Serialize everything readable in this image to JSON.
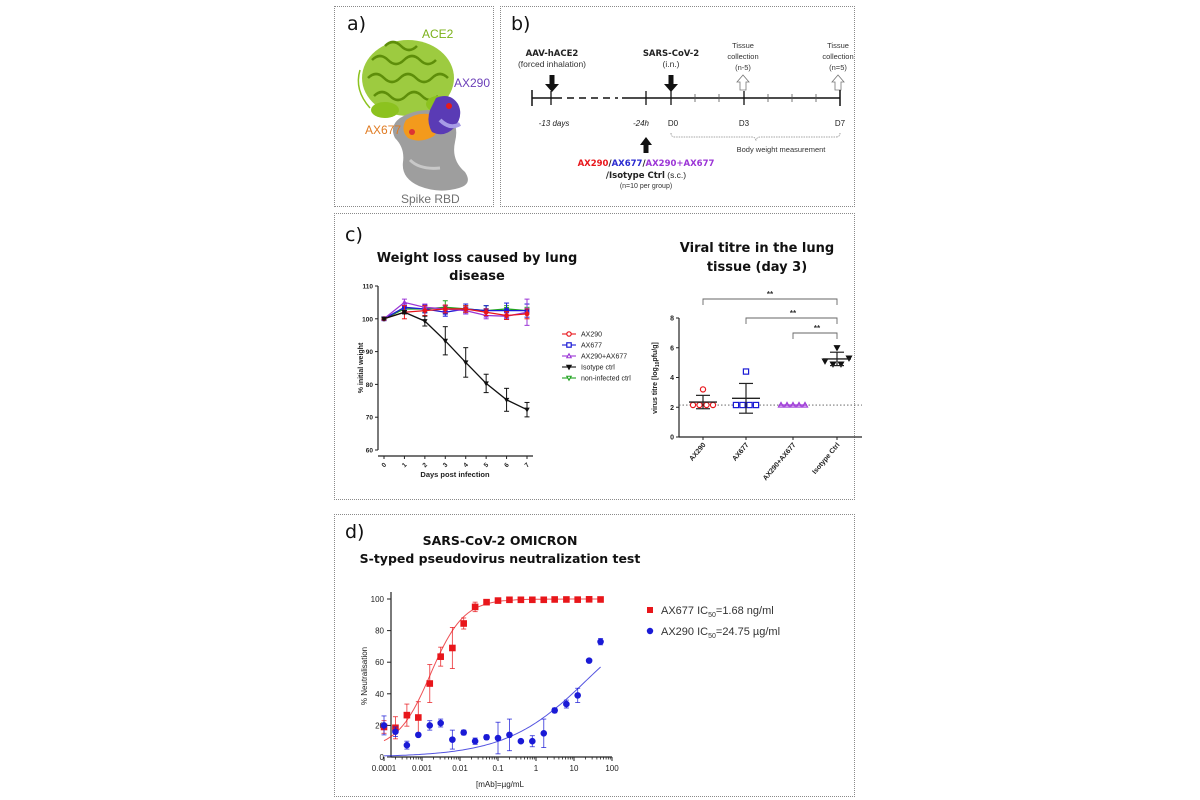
{
  "panels": {
    "a": {
      "label": "a)",
      "ace2": "ACE2",
      "ax290": "AX290",
      "ax677": "AX677",
      "rbd": "Spike RBD",
      "colors": {
        "ace2": "#8cc21f",
        "ax290": "#5a3bb5",
        "ax677": "#f39a1c",
        "rbd": "#9e9e9e"
      }
    },
    "b": {
      "label": "b)",
      "aav_title": "AAV-hACE2",
      "aav_sub": "(forced inhalation)",
      "sars_title": "SARS-CoV-2",
      "sars_sub": "(i.n.)",
      "tissue1": [
        "Tissue",
        "collection",
        "(n-5)"
      ],
      "tissue2": [
        "Tissue",
        "collection",
        "(n=5)"
      ],
      "ticks": {
        "m13": "-13 days",
        "m24": "-24h",
        "d0": "D0",
        "d3": "D3",
        "d7": "D7"
      },
      "bodyweight": "Body weight measurement",
      "treatments": [
        {
          "text": "AX290",
          "color": "#e8161b"
        },
        {
          "text": "/",
          "color": "#222222"
        },
        {
          "text": "AX677",
          "color": "#2a2ad0"
        },
        {
          "text": "/",
          "color": "#222222"
        },
        {
          "text": "AX290+AX677",
          "color": "#9b35d6"
        }
      ],
      "treat_line2": "/Isotype Ctrl",
      "treat_line2_suffix": " (s.c.)",
      "treat_line3": "(n=10 per group)"
    },
    "c": {
      "label": "c)"
    },
    "d": {
      "label": "d)",
      "title1": "SARS-CoV-2 OMICRON",
      "title2": "S-typed pseudovirus neutralization test",
      "legend": [
        {
          "name": "AX677",
          "ic_label": "IC",
          "ic_sub": "50",
          "ic_value": "=1.68 ng/ml",
          "color": "#e8161b",
          "marker": "square"
        },
        {
          "name": "AX290",
          "ic_label": "IC",
          "ic_sub": "50",
          "ic_value": "=24.75 µg/ml",
          "color": "#1a1ad6",
          "marker": "circle"
        }
      ]
    }
  },
  "chart_data": [
    {
      "id": "weight",
      "type": "line",
      "title": "Weight loss caused by lung disease",
      "title_lines": [
        "Weight loss caused by lung",
        "disease"
      ],
      "xlabel": "Days post infection",
      "ylabel": "% initial weight",
      "x": [
        0,
        1,
        2,
        3,
        4,
        5,
        6,
        7
      ],
      "xticks": [
        "0",
        "1",
        "2",
        "3",
        "4",
        "5",
        "6",
        "7"
      ],
      "ylim": [
        60,
        110
      ],
      "yticks": [
        "60",
        "70",
        "80",
        "90",
        "100",
        "110"
      ],
      "legend_position": "right",
      "series": [
        {
          "name": "AX290",
          "color": "#e8161b",
          "marker": "circle",
          "values": [
            100,
            102,
            102.5,
            103,
            103,
            102,
            101,
            101.5
          ],
          "err": [
            0.3,
            2,
            1.5,
            1.2,
            1,
            1,
            1.2,
            1.5
          ]
        },
        {
          "name": "AX677",
          "color": "#1a1ad6",
          "marker": "square",
          "values": [
            100,
            103.5,
            103,
            102,
            103,
            102.5,
            102.5,
            102.5
          ],
          "err": [
            0.3,
            1,
            1.2,
            1.2,
            1.5,
            1.5,
            2.3,
            2
          ]
        },
        {
          "name": "AX290+AX677",
          "color": "#9b35d6",
          "marker": "triangle-up",
          "values": [
            100,
            105,
            103.5,
            103,
            102.5,
            101,
            100.8,
            102
          ],
          "err": [
            0.3,
            1,
            1,
            1,
            1,
            1,
            1,
            4
          ]
        },
        {
          "name": "Isotype ctrl",
          "color": "#111111",
          "marker": "triangle-down",
          "values": [
            100,
            102,
            99.3,
            93.3,
            86.7,
            80.3,
            75.3,
            72.3
          ],
          "err": [
            0.3,
            0.5,
            1.5,
            4.3,
            4.5,
            2.8,
            3.5,
            2.2
          ]
        },
        {
          "name": "non-infected ctrl",
          "color": "#21a321",
          "marker": "triangle-down",
          "values": [
            100,
            103,
            103,
            103.5,
            103,
            102.5,
            103,
            102.5
          ],
          "err": [
            0.3,
            1,
            1,
            2,
            1,
            1.5,
            1,
            1
          ]
        }
      ]
    },
    {
      "id": "titre",
      "type": "scatter",
      "title": "Viral titre in the lung tissue (day 3)",
      "title_lines": [
        "Viral titre in the lung",
        "tissue (day 3)"
      ],
      "ylabel": "virus titre [log10pfu/g]",
      "ylabel_parts": [
        "virus titre [log",
        "10",
        "pfu/g]"
      ],
      "categories": [
        "AX290",
        "AX677",
        "AX290+AX677",
        "Isotype Ctrl"
      ],
      "ylim": [
        0,
        8
      ],
      "yticks": [
        "0",
        "2",
        "4",
        "6",
        "8"
      ],
      "detection_limit": 2.15,
      "groups": [
        {
          "name": "AX290",
          "color": "#e8161b",
          "marker": "circle",
          "points": [
            2.15,
            2.15,
            2.15,
            2.15,
            3.2
          ],
          "mean": 2.35,
          "sd_low": 1.9,
          "sd_high": 2.8
        },
        {
          "name": "AX677",
          "color": "#1a1ad6",
          "marker": "square",
          "points": [
            2.15,
            2.15,
            2.15,
            2.15,
            4.4
          ],
          "mean": 2.6,
          "sd_low": 1.6,
          "sd_high": 3.6
        },
        {
          "name": "AX290+AX677",
          "color": "#9b35d6",
          "marker": "triangle-up",
          "points": [
            2.15,
            2.15,
            2.15,
            2.15,
            2.15
          ],
          "mean": 2.15,
          "sd_low": 2.15,
          "sd_high": 2.15
        },
        {
          "name": "Isotype Ctrl",
          "color": "#111111",
          "marker": "triangle-down",
          "points": [
            5.1,
            4.9,
            4.9,
            5.3,
            6.0
          ],
          "mean": 5.25,
          "sd_low": 4.8,
          "sd_high": 5.7
        }
      ],
      "significance": [
        {
          "from": "AX290",
          "to": "Isotype Ctrl",
          "label": "**"
        },
        {
          "from": "AX677",
          "to": "Isotype Ctrl",
          "label": "**"
        },
        {
          "from": "AX290+AX677",
          "to": "Isotype Ctrl",
          "label": "**"
        }
      ]
    },
    {
      "id": "neutralization",
      "type": "scatter",
      "title": "SARS-CoV-2 OMICRON S-typed pseudovirus neutralization test",
      "xlabel": "[mAb]=µg/mL",
      "ylabel": "% Neutralisation",
      "xscale": "log",
      "xlim": [
        0.0001,
        100
      ],
      "xticks": [
        "0.0001",
        "0.001",
        "0.01",
        "0.1",
        "1",
        "10",
        "100"
      ],
      "ylim": [
        0,
        100
      ],
      "yticks": [
        "0",
        "20",
        "40",
        "60",
        "80",
        "100"
      ],
      "legend_position": "right",
      "series": [
        {
          "name": "AX677",
          "color": "#e8161b",
          "marker": "square",
          "x": [
            0.0001,
            0.0002,
            0.0004,
            0.0008,
            0.0016,
            0.0031,
            0.0063,
            0.0125,
            0.025,
            0.05,
            0.1,
            0.2,
            0.4,
            0.8,
            1.6,
            3.1,
            6.3,
            12.5,
            25,
            50
          ],
          "y": [
            19,
            18.5,
            26.5,
            25,
            46.5,
            63.5,
            69,
            84.5,
            95,
            98,
            99,
            99.5,
            99.5,
            99.5,
            99.5,
            99.7,
            99.7,
            99.6,
            99.8,
            99.7
          ],
          "err": [
            4,
            7,
            7,
            10,
            12,
            6,
            13,
            3.5,
            3,
            1,
            0.5,
            0.5,
            0.5,
            0.5,
            0.5,
            0.5,
            0.5,
            0.5,
            0.5,
            0.5
          ],
          "fit": {
            "ic50": 0.00168,
            "bottom": 5,
            "top": 100,
            "hill": 1.0
          }
        },
        {
          "name": "AX290",
          "color": "#1a1ad6",
          "marker": "circle",
          "x": [
            0.0001,
            0.0002,
            0.0004,
            0.0008,
            0.0016,
            0.0031,
            0.0063,
            0.0125,
            0.025,
            0.05,
            0.1,
            0.2,
            0.4,
            0.8,
            1.6,
            3.1,
            6.3,
            12.5,
            25,
            50
          ],
          "y": [
            20,
            16,
            7.5,
            14,
            20,
            21.5,
            11,
            15.5,
            10,
            12.5,
            12,
            14,
            10,
            10,
            15,
            29.5,
            33.5,
            39,
            61,
            73
          ],
          "err": [
            6,
            3,
            2.5,
            1,
            3,
            2.5,
            6,
            1.5,
            2,
            1.5,
            10,
            10,
            0.5,
            3.5,
            9,
            1.5,
            2.5,
            4.5,
            0.5,
            2
          ],
          "fit": {
            "ic50": 24.75,
            "bottom": 0,
            "top": 100,
            "hill": 0.4
          }
        }
      ]
    }
  ]
}
